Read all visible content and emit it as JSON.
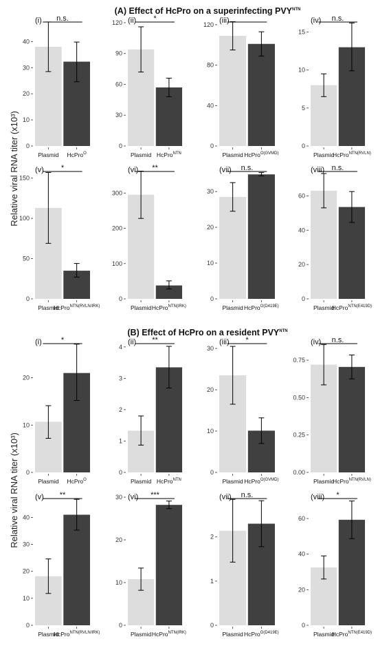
{
  "figure": {
    "sections": [
      {
        "id": "A",
        "prefix": "(A) Effect of HcPro on a superinfecting PVY",
        "suffix": "NTN"
      },
      {
        "id": "B",
        "prefix": "(B) Effect of HcPro on a resident PVY",
        "suffix": "NTN"
      }
    ],
    "ylabel": "Relative viral RNA titer (x10³)",
    "colors": {
      "plasmid": "#dddddd",
      "hcpro": "#404040"
    }
  },
  "chart_data": [
    {
      "type": "bar",
      "section": "A",
      "panel": "(i)",
      "ylim": [
        0,
        48
      ],
      "ticks": [
        "0",
        "10",
        "20",
        "30",
        "40"
      ],
      "tick_values": [
        0,
        10,
        20,
        30,
        40
      ],
      "categories": [
        {
          "base": "Plasmid",
          "sup": ""
        },
        {
          "base": "HcPro",
          "sup": "O"
        }
      ],
      "values": [
        38,
        32.3
      ],
      "err_low": [
        28.5,
        24.6
      ],
      "err_high": [
        47.5,
        39.8
      ],
      "significance": "n.s."
    },
    {
      "type": "bar",
      "section": "A",
      "panel": "(ii)",
      "ylim": [
        0,
        122
      ],
      "ticks": [
        "0",
        "30",
        "60",
        "90",
        "120"
      ],
      "tick_values": [
        0,
        30,
        60,
        90,
        120
      ],
      "categories": [
        {
          "base": "Plasmid",
          "sup": ""
        },
        {
          "base": "HcPro",
          "sup": "NTN"
        }
      ],
      "values": [
        94,
        57
      ],
      "err_low": [
        72,
        48
      ],
      "err_high": [
        116,
        66
      ],
      "significance": "*"
    },
    {
      "type": "bar",
      "section": "A",
      "panel": "(iii)",
      "ylim": [
        0,
        124
      ],
      "ticks": [
        "0",
        "40",
        "80",
        "120"
      ],
      "tick_values": [
        0,
        40,
        80,
        120
      ],
      "categories": [
        {
          "base": "Plasmid",
          "sup": ""
        },
        {
          "base": "HcPro",
          "sup": "O(GVMD)"
        }
      ],
      "values": [
        109,
        101
      ],
      "err_low": [
        95,
        89
      ],
      "err_high": [
        123,
        113
      ],
      "significance": ""
    },
    {
      "type": "bar",
      "section": "A",
      "panel": "(iv)",
      "ylim": [
        0,
        16.5
      ],
      "ticks": [
        "0",
        "5",
        "10",
        "15"
      ],
      "tick_values": [
        0,
        5,
        10,
        15
      ],
      "categories": [
        {
          "base": "Plasmid",
          "sup": ""
        },
        {
          "base": "HcPro",
          "sup": "NTN(RVLN)"
        }
      ],
      "values": [
        8,
        13
      ],
      "err_low": [
        6.5,
        9.9
      ],
      "err_high": [
        9.5,
        16.2
      ],
      "significance": "n.s."
    },
    {
      "type": "bar",
      "section": "A",
      "panel": "(v)",
      "ylim": [
        0,
        160
      ],
      "ticks": [
        "0",
        "50",
        "100",
        "150"
      ],
      "tick_values": [
        0,
        50,
        100,
        150
      ],
      "categories": [
        {
          "base": "Plasmid",
          "sup": ""
        },
        {
          "base": "HcPro",
          "sup": "NTN(RVLN/IRK)"
        }
      ],
      "values": [
        113,
        35
      ],
      "err_low": [
        69,
        27
      ],
      "err_high": [
        157,
        44
      ],
      "significance": "*"
    },
    {
      "type": "bar",
      "section": "A",
      "panel": "(vi)",
      "ylim": [
        0,
        365
      ],
      "ticks": [
        "0",
        "100",
        "200",
        "300"
      ],
      "tick_values": [
        0,
        100,
        200,
        300
      ],
      "categories": [
        {
          "base": "Plasmid",
          "sup": ""
        },
        {
          "base": "HcPro",
          "sup": "NTN(IRK)"
        }
      ],
      "values": [
        295,
        38
      ],
      "err_low": [
        228,
        28
      ],
      "err_high": [
        362,
        51
      ],
      "significance": "**"
    },
    {
      "type": "bar",
      "section": "A",
      "panel": "(vii)",
      "ylim": [
        0,
        36
      ],
      "ticks": [
        "0",
        "10",
        "20",
        "30"
      ],
      "tick_values": [
        0,
        10,
        20,
        30
      ],
      "categories": [
        {
          "base": "Plasmid",
          "sup": ""
        },
        {
          "base": "HcPro",
          "sup": "O(D419E)"
        }
      ],
      "values": [
        28.5,
        34.8
      ],
      "err_low": [
        24.5,
        34.4
      ],
      "err_high": [
        32.5,
        35.3
      ],
      "significance": "n.s."
    },
    {
      "type": "bar",
      "section": "A",
      "panel": "(viii)",
      "ylim": [
        0,
        75
      ],
      "ticks": [
        "0",
        "20",
        "40",
        "60"
      ],
      "tick_values": [
        0,
        20,
        40,
        60
      ],
      "categories": [
        {
          "base": "Plasmid",
          "sup": ""
        },
        {
          "base": "HcPro",
          "sup": "NTN(E419D)"
        }
      ],
      "values": [
        63,
        53.5
      ],
      "err_low": [
        53,
        44.5
      ],
      "err_high": [
        73,
        62.5
      ],
      "significance": "n.s."
    },
    {
      "type": "bar",
      "section": "B",
      "panel": "(i)",
      "ylim": [
        0,
        27.5
      ],
      "ticks": [
        "0",
        "10",
        "20"
      ],
      "tick_values": [
        0,
        10,
        20
      ],
      "categories": [
        {
          "base": "Plasmid",
          "sup": ""
        },
        {
          "base": "HcPro",
          "sup": "O"
        }
      ],
      "values": [
        10.7,
        21
      ],
      "err_low": [
        7.2,
        15.2
      ],
      "err_high": [
        14.1,
        27.1
      ],
      "significance": "*"
    },
    {
      "type": "bar",
      "section": "B",
      "panel": "(ii)",
      "ylim": [
        0,
        4.15
      ],
      "ticks": [
        "0",
        "1",
        "2",
        "3",
        "4"
      ],
      "tick_values": [
        0,
        1,
        2,
        3,
        4
      ],
      "categories": [
        {
          "base": "Plasmid",
          "sup": ""
        },
        {
          "base": "HcPro",
          "sup": "NTN"
        }
      ],
      "values": [
        1.33,
        3.35
      ],
      "err_low": [
        0.87,
        2.69
      ],
      "err_high": [
        1.8,
        4.02
      ],
      "significance": "**"
    },
    {
      "type": "bar",
      "section": "B",
      "panel": "(iii)",
      "ylim": [
        0,
        31.5
      ],
      "ticks": [
        "0",
        "10",
        "20",
        "30"
      ],
      "tick_values": [
        0,
        10,
        20,
        30
      ],
      "categories": [
        {
          "base": "Plasmid",
          "sup": ""
        },
        {
          "base": "HcPro",
          "sup": "O(GVMD)"
        }
      ],
      "values": [
        23.5,
        10.1
      ],
      "err_low": [
        16.5,
        7
      ],
      "err_high": [
        30.5,
        13.2
      ],
      "significance": "*"
    },
    {
      "type": "bar",
      "section": "B",
      "panel": "(iv)",
      "ylim": [
        0,
        0.87
      ],
      "ticks": [
        "0.00",
        "0.25",
        "0.50",
        "0.75"
      ],
      "tick_values": [
        0,
        0.25,
        0.5,
        0.75
      ],
      "categories": [
        {
          "base": "Plasmid",
          "sup": ""
        },
        {
          "base": "HcPro",
          "sup": "NTN(RVLN)"
        }
      ],
      "values": [
        0.72,
        0.705
      ],
      "err_low": [
        0.585,
        0.625
      ],
      "err_high": [
        0.855,
        0.785
      ],
      "significance": "n.s."
    },
    {
      "type": "bar",
      "section": "B",
      "panel": "(v)",
      "ylim": [
        0,
        47.5
      ],
      "ticks": [
        "0",
        "10",
        "20",
        "30",
        "40"
      ],
      "tick_values": [
        0,
        10,
        20,
        30,
        40
      ],
      "categories": [
        {
          "base": "Plasmid",
          "sup": ""
        },
        {
          "base": "HcPro",
          "sup": "NTN(RVLN/IRK)"
        }
      ],
      "values": [
        18.2,
        41
      ],
      "err_low": [
        11.8,
        35.3
      ],
      "err_high": [
        24.6,
        46.7
      ],
      "significance": "**"
    },
    {
      "type": "bar",
      "section": "B",
      "panel": "(vi)",
      "ylim": [
        0,
        30
      ],
      "ticks": [
        "0",
        "10",
        "20",
        "30"
      ],
      "tick_values": [
        0,
        10,
        20,
        30
      ],
      "categories": [
        {
          "base": "Plasmid",
          "sup": ""
        },
        {
          "base": "HcPro",
          "sup": "NTN(IRK)"
        }
      ],
      "values": [
        10.8,
        28.2
      ],
      "err_low": [
        8.2,
        27.3
      ],
      "err_high": [
        13.4,
        29.1
      ],
      "significance": "***"
    },
    {
      "type": "bar",
      "section": "B",
      "panel": "(vii)",
      "ylim": [
        0,
        2.9
      ],
      "ticks": [
        "0",
        "1",
        "2"
      ],
      "tick_values": [
        0,
        1,
        2
      ],
      "categories": [
        {
          "base": "Plasmid",
          "sup": ""
        },
        {
          "base": "HcPro",
          "sup": "O(D419E)"
        }
      ],
      "values": [
        2.14,
        2.3
      ],
      "err_low": [
        1.43,
        1.78
      ],
      "err_high": [
        2.85,
        2.82
      ],
      "significance": "n.s."
    },
    {
      "type": "bar",
      "section": "B",
      "panel": "(viii)",
      "ylim": [
        0,
        72
      ],
      "ticks": [
        "0",
        "20",
        "40",
        "60"
      ],
      "tick_values": [
        0,
        20,
        40,
        60
      ],
      "categories": [
        {
          "base": "Plasmid",
          "sup": ""
        },
        {
          "base": "HcPro",
          "sup": "NTN(E419D)"
        }
      ],
      "values": [
        32.5,
        59.3
      ],
      "err_low": [
        26,
        48.7
      ],
      "err_high": [
        39,
        69.9
      ],
      "significance": "*"
    }
  ]
}
